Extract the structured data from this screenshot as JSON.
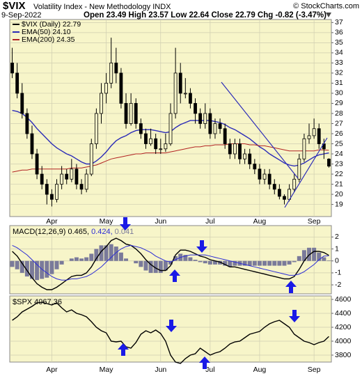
{
  "chart_data": [
    {
      "type": "candlestick",
      "title": "$VIX",
      "subtitle": "Volatility Index - New Methodology  INDX",
      "date": "9-Sep-2022",
      "quote": "Open 23.49  High 23.57  Low 22.64  Close 22.79  Chg -0.82 (-3.47%)",
      "source": "© StockCharts.com",
      "name": "$VIX (Daily) 22.79",
      "color": "#000000",
      "categories": [
        null,
        null,
        null,
        null,
        null,
        null,
        null,
        null,
        "Apr",
        null,
        null,
        null,
        null,
        null,
        null,
        null,
        null,
        null,
        null,
        "May",
        null,
        null,
        null,
        null,
        null,
        null,
        null,
        null,
        null,
        null,
        "Jun",
        null,
        null,
        null,
        null,
        null,
        null,
        null,
        null,
        null,
        "Jul",
        null,
        null,
        null,
        null,
        null,
        null,
        null,
        null,
        null,
        "Aug",
        null,
        null,
        null,
        null,
        null,
        null,
        null,
        null,
        null,
        null,
        "Sep",
        null,
        null,
        null
      ],
      "open": [
        33,
        32,
        30,
        28,
        26,
        24,
        22,
        21,
        20,
        19.5,
        21,
        22,
        21.5,
        22.5,
        21,
        20.5,
        22,
        25,
        28,
        30,
        31,
        33,
        32,
        29,
        27,
        29,
        27,
        26,
        25,
        25.5,
        24.5,
        24.5,
        25,
        28,
        32,
        30,
        30,
        29,
        28,
        27,
        28,
        26,
        27,
        26.5,
        25,
        24,
        25,
        23.5,
        24,
        23,
        22.5,
        21.5,
        22,
        21,
        20.5,
        19.8,
        19.5,
        20.5,
        21.5,
        23.5,
        25.5,
        25.8,
        26.5,
        25,
        23.49
      ],
      "high": [
        34.5,
        33,
        31,
        28.5,
        26.8,
        24.5,
        22.8,
        21.5,
        20.5,
        21.5,
        22.8,
        22.5,
        23.5,
        23,
        21.5,
        22.5,
        25.5,
        28.5,
        31,
        32,
        35.5,
        34.5,
        32.5,
        30,
        30,
        29.5,
        27.5,
        26.5,
        26.5,
        26,
        25.5,
        26,
        29,
        34.5,
        33,
        31.5,
        30.5,
        29.5,
        28.5,
        29,
        28.5,
        27.5,
        27.5,
        27,
        25.5,
        25.5,
        25.5,
        24.5,
        24.5,
        23.5,
        23,
        22.5,
        22.5,
        21.5,
        21,
        20,
        21,
        22,
        24,
        26,
        27,
        27.5,
        27,
        25.5,
        23.57
      ],
      "low": [
        31.5,
        29.5,
        27.5,
        25.5,
        23.5,
        21.5,
        20.5,
        19,
        18.8,
        19.2,
        20.5,
        21,
        21.2,
        20.5,
        20,
        20.2,
        21.8,
        24.5,
        27,
        29,
        30.5,
        31,
        28.5,
        26.5,
        26.8,
        26.5,
        25.5,
        24.5,
        24.8,
        24,
        24,
        24.2,
        24.8,
        27.5,
        29,
        29.5,
        28.5,
        27,
        26.5,
        26.5,
        25.5,
        25.5,
        26,
        24.5,
        23.5,
        23.5,
        23,
        23,
        22.5,
        22,
        21,
        21,
        20.5,
        20,
        19.5,
        19,
        19.3,
        20.2,
        21.2,
        23.2,
        25,
        25.5,
        24.5,
        23.5,
        22.64
      ],
      "close": [
        32,
        30,
        28,
        26,
        24,
        22,
        21,
        20,
        19.5,
        21,
        22,
        21.5,
        22.5,
        21,
        20.5,
        22,
        25,
        28,
        30,
        31,
        33,
        32,
        29,
        27,
        29,
        27,
        26,
        25,
        25.5,
        24.5,
        24.5,
        25,
        28,
        32,
        30,
        30,
        29,
        28,
        27,
        28,
        26,
        27,
        26.5,
        25,
        24,
        25,
        23.5,
        24,
        23,
        22.5,
        21.5,
        22,
        21,
        20.5,
        19.8,
        19.5,
        20.5,
        21.5,
        23.5,
        25.5,
        25.8,
        26.5,
        25,
        24.5,
        22.79
      ],
      "series": [
        {
          "name": "EMA(50) 24.10",
          "color": "#2b2bb8",
          "values": [
            28.3,
            28.2,
            28,
            27.6,
            27.1,
            26.5,
            26,
            25.5,
            25,
            24.6,
            24.3,
            24,
            23.8,
            23.5,
            23.2,
            23,
            23,
            23.3,
            23.7,
            24.2,
            24.8,
            25.3,
            25.6,
            25.8,
            26.1,
            26.3,
            26.4,
            26.4,
            26.4,
            26.3,
            26.2,
            26.1,
            26.2,
            26.6,
            26.9,
            27.1,
            27.3,
            27.3,
            27.3,
            27.3,
            27.3,
            27.2,
            27.1,
            26.9,
            26.6,
            26.4,
            26.1,
            25.8,
            25.5,
            25.1,
            24.7,
            24.4,
            24,
            23.7,
            23.4,
            23.1,
            22.9,
            22.8,
            22.9,
            23.1,
            23.4,
            23.7,
            23.9,
            24,
            24.1
          ]
        },
        {
          "name": "EMA(200) 24.35",
          "color": "#b22222",
          "values": [
            22.2,
            22.3,
            22.4,
            22.4,
            22.5,
            22.5,
            22.5,
            22.5,
            22.5,
            22.5,
            22.5,
            22.5,
            22.6,
            22.6,
            22.6,
            22.7,
            22.8,
            22.9,
            23.1,
            23.3,
            23.5,
            23.6,
            23.7,
            23.8,
            23.9,
            24,
            24,
            24.1,
            24.1,
            24.1,
            24.1,
            24.1,
            24.2,
            24.3,
            24.4,
            24.5,
            24.6,
            24.7,
            24.7,
            24.8,
            24.8,
            24.9,
            24.9,
            24.9,
            25,
            25,
            25,
            25,
            24.9,
            24.9,
            24.8,
            24.8,
            24.7,
            24.6,
            24.5,
            24.4,
            24.3,
            24.3,
            24.3,
            24.3,
            24.3,
            24.3,
            24.4,
            24.4,
            24.35
          ]
        }
      ],
      "ylim": [
        17.8,
        37.3
      ],
      "yticks": [
        19,
        20,
        21,
        22,
        23,
        24,
        25,
        26,
        27,
        28,
        29,
        30,
        31,
        32,
        33,
        34,
        35,
        36,
        37
      ],
      "grid": true
    },
    {
      "type": "line",
      "series": [
        {
          "name": "MACD(12,26,9) 0.465,",
          "color": "#000000",
          "values": [
            0.8,
            0.4,
            -0.2,
            -0.8,
            -1.4,
            -1.9,
            -2.2,
            -2.4,
            -2.4,
            -2.2,
            -1.9,
            -1.6,
            -1.3,
            -1.2,
            -1.2,
            -1,
            -0.5,
            0.2,
            0.8,
            1.2,
            1.7,
            1.9,
            1.7,
            1.4,
            1.3,
            1,
            0.6,
            0.1,
            -0.3,
            -0.6,
            -0.8,
            -0.8,
            -0.4,
            0.5,
            0.9,
            0.9,
            0.8,
            0.6,
            0.4,
            0.3,
            0.1,
            0,
            -0.1,
            -0.3,
            -0.5,
            -0.5,
            -0.6,
            -0.7,
            -0.8,
            -0.9,
            -1,
            -1.1,
            -1.2,
            -1.3,
            -1.4,
            -1.5,
            -1.5,
            -1.3,
            -0.7,
            0,
            0.5,
            0.8,
            0.8,
            0.7,
            0.465
          ]
        },
        {
          "name": "0.424,",
          "color": "#2b2bd6",
          "values": [
            1.3,
            1.1,
            0.8,
            0.5,
            0.1,
            -0.3,
            -0.7,
            -1,
            -1.3,
            -1.5,
            -1.6,
            -1.6,
            -1.5,
            -1.5,
            -1.4,
            -1.3,
            -1.1,
            -0.8,
            -0.5,
            -0.1,
            0.3,
            0.7,
            1,
            1.2,
            1.3,
            1.2,
            1.1,
            0.9,
            0.7,
            0.4,
            0.2,
            0,
            -0.1,
            0.1,
            0.3,
            0.4,
            0.5,
            0.5,
            0.5,
            0.5,
            0.4,
            0.3,
            0.2,
            0.1,
            0,
            -0.1,
            -0.2,
            -0.3,
            -0.4,
            -0.5,
            -0.6,
            -0.7,
            -0.8,
            -0.9,
            -1,
            -1.1,
            -1.2,
            -1.2,
            -1.1,
            -0.9,
            -0.6,
            -0.3,
            0.1,
            0.4,
            0.424
          ]
        },
        {
          "name": "0.041",
          "color": "#7a7a9a",
          "type": "bar",
          "values": [
            -0.5,
            -0.7,
            -1,
            -1.3,
            -1.5,
            -1.6,
            -1.5,
            -1.4,
            -1.1,
            -0.7,
            -0.3,
            0,
            0.2,
            0.3,
            0.2,
            0.3,
            0.6,
            1,
            1.3,
            1.3,
            1.4,
            1.2,
            0.7,
            0.2,
            0,
            -0.2,
            -0.5,
            -0.8,
            -1,
            -1,
            -1,
            -0.8,
            -0.3,
            0.4,
            0.6,
            0.5,
            0.3,
            0.1,
            -0.1,
            -0.2,
            -0.3,
            -0.3,
            -0.3,
            -0.4,
            -0.5,
            -0.4,
            -0.4,
            -0.4,
            -0.4,
            -0.4,
            -0.4,
            -0.4,
            -0.4,
            -0.4,
            -0.4,
            -0.4,
            -0.3,
            -0.1,
            0.4,
            0.9,
            1.1,
            1.1,
            0.7,
            0.3,
            0.041
          ]
        }
      ],
      "ylim": [
        -2.75,
        2.95
      ],
      "yticks": [
        -2,
        -1,
        0,
        1,
        2
      ],
      "grid": true
    },
    {
      "type": "line",
      "series": [
        {
          "name": "$SPX 4067.36",
          "color": "#000000",
          "values": [
            4300,
            4350,
            4420,
            4460,
            4500,
            4550,
            4560,
            4540,
            4520,
            4550,
            4480,
            4420,
            4450,
            4400,
            4380,
            4350,
            4280,
            4200,
            4150,
            4120,
            4000,
            3990,
            4000,
            3920,
            3900,
            3980,
            4100,
            4150,
            4120,
            4160,
            4110,
            4000,
            3800,
            3700,
            3680,
            3750,
            3800,
            3820,
            3900,
            3850,
            3800,
            3830,
            3850,
            3900,
            3960,
            3990,
            4000,
            4050,
            4100,
            4120,
            4140,
            4200,
            4250,
            4280,
            4300,
            4250,
            4200,
            4100,
            4050,
            4000,
            3980,
            3950,
            3980,
            4000,
            4067.36
          ]
        }
      ],
      "ylim": [
        3700,
        4650
      ],
      "yticks": [
        3800,
        4000,
        4200,
        4400,
        4600
      ],
      "grid": true
    }
  ]
}
